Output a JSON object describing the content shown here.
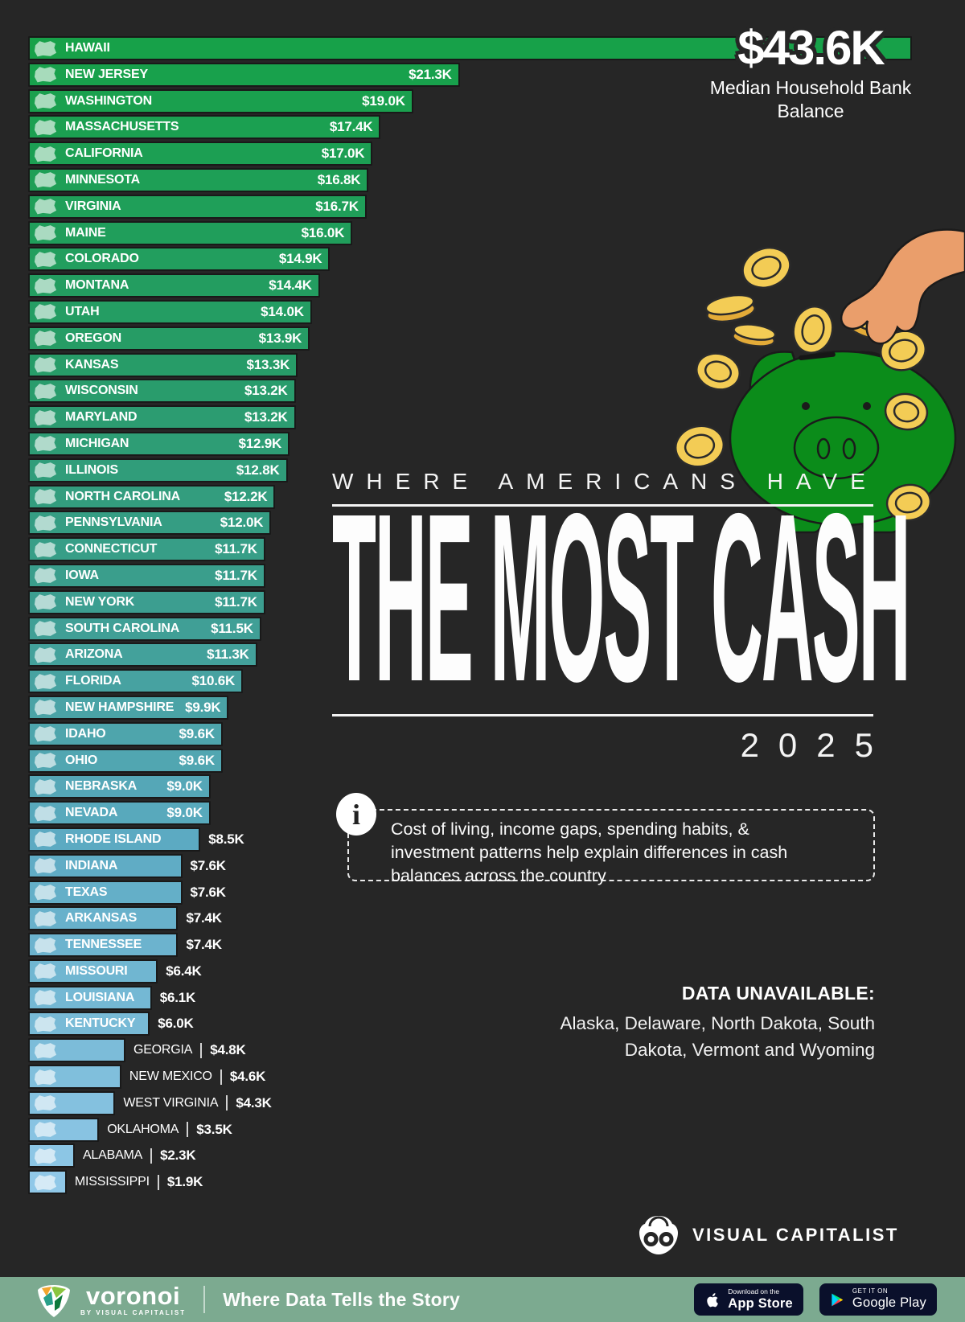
{
  "header": {
    "callout_value": "$43.6K",
    "callout_label": "Median Household Bank Balance"
  },
  "title": {
    "kicker": "WHERE AMERICANS HAVE",
    "main": "THE MOST CASH",
    "year": "2025"
  },
  "info": {
    "icon": "i",
    "text": "Cost of living, income gaps, spending habits, & investment patterns help explain differences in cash balances across the country"
  },
  "data_unavailable": {
    "heading": "DATA UNAVAILABLE:",
    "body": "Alaska, Delaware, North Dakota, South Dakota, Vermont and Wyoming"
  },
  "branding": {
    "visual_capitalist": "VISUAL CAPITALIST",
    "voronoi": "voronoi",
    "voronoi_sub": "BY VISUAL CAPITALIST",
    "tagline": "Where Data Tells the Story",
    "app_store_top": "Download on the",
    "app_store_bottom": "App Store",
    "google_play_top": "GET IT ON",
    "google_play_bottom": "Google Play"
  },
  "colors": {
    "background": "#262626",
    "bar_gradient_start": "#17a149",
    "bar_gradient_mid": "#3c9e90",
    "bar_gradient_end": "#90c8e8",
    "footer_bg": "#7caa90",
    "badge_bg": "#0a102b",
    "pig_green": "#0b8c1a",
    "coin_gold": "#f3cc55",
    "hand_skin": "#ea9e6b"
  },
  "chart_data": {
    "type": "bar",
    "orientation": "horizontal",
    "title": "Where Americans Have the Most Cash 2025",
    "value_label": "Median Household Bank Balance",
    "unit": "USD thousands",
    "xlim": [
      0,
      43.6
    ],
    "categories": [
      "HAWAII",
      "NEW JERSEY",
      "WASHINGTON",
      "MASSACHUSETTS",
      "CALIFORNIA",
      "MINNESOTA",
      "VIRGINIA",
      "MAINE",
      "COLORADO",
      "MONTANA",
      "UTAH",
      "OREGON",
      "KANSAS",
      "WISCONSIN",
      "MARYLAND",
      "MICHIGAN",
      "ILLINOIS",
      "NORTH CAROLINA",
      "PENNSYLVANIA",
      "CONNECTICUT",
      "IOWA",
      "NEW YORK",
      "SOUTH CAROLINA",
      "ARIZONA",
      "FLORIDA",
      "NEW HAMPSHIRE",
      "IDAHO",
      "OHIO",
      "NEBRASKA",
      "NEVADA",
      "RHODE ISLAND",
      "INDIANA",
      "TEXAS",
      "ARKANSAS",
      "TENNESSEE",
      "MISSOURI",
      "LOUISIANA",
      "KENTUCKY",
      "GEORGIA",
      "NEW MEXICO",
      "WEST VIRGINIA",
      "OKLAHOMA",
      "ALABAMA",
      "MISSISSIPPI"
    ],
    "values": [
      43.6,
      21.3,
      19.0,
      17.4,
      17.0,
      16.8,
      16.7,
      16.0,
      14.9,
      14.4,
      14.0,
      13.9,
      13.3,
      13.2,
      13.2,
      12.9,
      12.8,
      12.2,
      12.0,
      11.7,
      11.7,
      11.7,
      11.5,
      11.3,
      10.6,
      9.9,
      9.6,
      9.6,
      9.0,
      9.0,
      8.5,
      7.6,
      7.6,
      7.4,
      7.4,
      6.4,
      6.1,
      6.0,
      4.8,
      4.6,
      4.3,
      3.5,
      2.3,
      1.9
    ],
    "rows": [
      {
        "state": "HAWAII",
        "value": 43.6,
        "label": "$43.6K"
      },
      {
        "state": "NEW JERSEY",
        "value": 21.3,
        "label": "$21.3K"
      },
      {
        "state": "WASHINGTON",
        "value": 19.0,
        "label": "$19.0K"
      },
      {
        "state": "MASSACHUSETTS",
        "value": 17.4,
        "label": "$17.4K"
      },
      {
        "state": "CALIFORNIA",
        "value": 17.0,
        "label": "$17.0K"
      },
      {
        "state": "MINNESOTA",
        "value": 16.8,
        "label": "$16.8K"
      },
      {
        "state": "VIRGINIA",
        "value": 16.7,
        "label": "$16.7K"
      },
      {
        "state": "MAINE",
        "value": 16.0,
        "label": "$16.0K"
      },
      {
        "state": "COLORADO",
        "value": 14.9,
        "label": "$14.9K"
      },
      {
        "state": "MONTANA",
        "value": 14.4,
        "label": "$14.4K"
      },
      {
        "state": "UTAH",
        "value": 14.0,
        "label": "$14.0K"
      },
      {
        "state": "OREGON",
        "value": 13.9,
        "label": "$13.9K"
      },
      {
        "state": "KANSAS",
        "value": 13.3,
        "label": "$13.3K"
      },
      {
        "state": "WISCONSIN",
        "value": 13.2,
        "label": "$13.2K"
      },
      {
        "state": "MARYLAND",
        "value": 13.2,
        "label": "$13.2K"
      },
      {
        "state": "MICHIGAN",
        "value": 12.9,
        "label": "$12.9K"
      },
      {
        "state": "ILLINOIS",
        "value": 12.8,
        "label": "$12.8K"
      },
      {
        "state": "NORTH CAROLINA",
        "value": 12.2,
        "label": "$12.2K"
      },
      {
        "state": "PENNSYLVANIA",
        "value": 12.0,
        "label": "$12.0K"
      },
      {
        "state": "CONNECTICUT",
        "value": 11.7,
        "label": "$11.7K"
      },
      {
        "state": "IOWA",
        "value": 11.7,
        "label": "$11.7K"
      },
      {
        "state": "NEW YORK",
        "value": 11.7,
        "label": "$11.7K"
      },
      {
        "state": "SOUTH CAROLINA",
        "value": 11.5,
        "label": "$11.5K"
      },
      {
        "state": "ARIZONA",
        "value": 11.3,
        "label": "$11.3K"
      },
      {
        "state": "FLORIDA",
        "value": 10.6,
        "label": "$10.6K"
      },
      {
        "state": "NEW HAMPSHIRE",
        "value": 9.9,
        "label": "$9.9K"
      },
      {
        "state": "IDAHO",
        "value": 9.6,
        "label": "$9.6K"
      },
      {
        "state": "OHIO",
        "value": 9.6,
        "label": "$9.6K"
      },
      {
        "state": "NEBRASKA",
        "value": 9.0,
        "label": "$9.0K"
      },
      {
        "state": "NEVADA",
        "value": 9.0,
        "label": "$9.0K"
      },
      {
        "state": "RHODE ISLAND",
        "value": 8.5,
        "label": "$8.5K"
      },
      {
        "state": "INDIANA",
        "value": 7.6,
        "label": "$7.6K"
      },
      {
        "state": "TEXAS",
        "value": 7.6,
        "label": "$7.6K"
      },
      {
        "state": "ARKANSAS",
        "value": 7.4,
        "label": "$7.4K"
      },
      {
        "state": "TENNESSEE",
        "value": 7.4,
        "label": "$7.4K"
      },
      {
        "state": "MISSOURI",
        "value": 6.4,
        "label": "$6.4K"
      },
      {
        "state": "LOUISIANA",
        "value": 6.1,
        "label": "$6.1K"
      },
      {
        "state": "KENTUCKY",
        "value": 6.0,
        "label": "$6.0K"
      },
      {
        "state": "GEORGIA",
        "value": 4.8,
        "label": "$4.8K"
      },
      {
        "state": "NEW MEXICO",
        "value": 4.6,
        "label": "$4.6K"
      },
      {
        "state": "WEST VIRGINIA",
        "value": 4.3,
        "label": "$4.3K"
      },
      {
        "state": "OKLAHOMA",
        "value": 3.5,
        "label": "$3.5K"
      },
      {
        "state": "ALABAMA",
        "value": 2.3,
        "label": "$2.3K"
      },
      {
        "state": "MISSISSIPPI",
        "value": 1.9,
        "label": "$1.9K"
      }
    ]
  }
}
